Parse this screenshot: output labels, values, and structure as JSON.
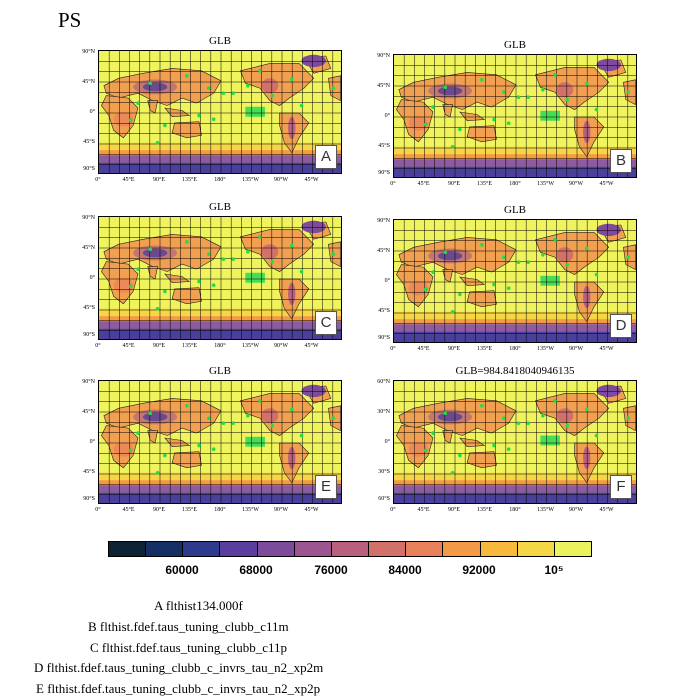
{
  "title": "PS",
  "panels": [
    {
      "title": "GLB",
      "letter": "A",
      "lat_ticks": [
        "90°N",
        "45°N",
        "0°",
        "45°S",
        "90°S"
      ],
      "lon_ticks": [
        "0°",
        "45°E",
        "90°E",
        "135°E",
        "180°",
        "135°W",
        "90°W",
        "45°W"
      ]
    },
    {
      "title": "GLB",
      "letter": "B",
      "lat_ticks": [
        "90°N",
        "45°N",
        "0°",
        "45°S",
        "90°S"
      ],
      "lon_ticks": [
        "0°",
        "45°E",
        "90°E",
        "135°E",
        "180°",
        "135°W",
        "90°W",
        "45°W"
      ]
    },
    {
      "title": "GLB",
      "letter": "C",
      "lat_ticks": [
        "90°N",
        "45°N",
        "0°",
        "45°S",
        "90°S"
      ],
      "lon_ticks": [
        "0°",
        "45°E",
        "90°E",
        "135°E",
        "180°",
        "135°W",
        "90°W",
        "45°W"
      ]
    },
    {
      "title": "GLB",
      "letter": "D",
      "lat_ticks": [
        "90°N",
        "45°N",
        "0°",
        "45°S",
        "90°S"
      ],
      "lon_ticks": [
        "0°",
        "45°E",
        "90°E",
        "135°E",
        "180°",
        "135°W",
        "90°W",
        "45°W"
      ]
    },
    {
      "title": "GLB",
      "letter": "E",
      "lat_ticks": [
        "90°N",
        "45°N",
        "0°",
        "45°S",
        "90°S"
      ],
      "lon_ticks": [
        "0°",
        "45°E",
        "90°E",
        "135°E",
        "180°",
        "135°W",
        "90°W",
        "45°W"
      ]
    },
    {
      "title": "GLB=984.8418040946135",
      "letter": "F",
      "lat_ticks": [
        "60°N",
        "30°N",
        "0°",
        "30°S",
        "60°S"
      ],
      "lon_ticks": [
        "0°",
        "45°E",
        "90°E",
        "135°E",
        "180°",
        "135°W",
        "90°W",
        "45°W"
      ]
    }
  ],
  "colorbar": {
    "colors": [
      "#0d2233",
      "#142f63",
      "#2e3a8c",
      "#5a3e9e",
      "#7e4a9c",
      "#9c5590",
      "#b8617f",
      "#d2706a",
      "#e8805a",
      "#f39a47",
      "#f7b93d",
      "#f5d645",
      "#eaf35c"
    ],
    "labels": [
      "60000",
      "68000",
      "76000",
      "84000",
      "92000",
      "10⁵"
    ]
  },
  "legend": [
    "A  flthist134.000f",
    "B  flthist.fdef.taus_tuning_clubb_c11m",
    "C  flthist.fdef.taus_tuning_clubb_c11p",
    "D  flthist.fdef.taus_tuning_clubb_c_invrs_tau_n2_xp2m",
    "E  flthist.fdef.taus_tuning_clubb_c_invrs_tau_n2_xp2p"
  ],
  "chart_data": {
    "type": "heatmap",
    "title": "PS",
    "variable": "PS",
    "panel_titles": [
      "GLB",
      "GLB",
      "GLB",
      "GLB",
      "GLB",
      "GLB=984.8418040946135"
    ],
    "panel_labels": [
      "A",
      "B",
      "C",
      "D",
      "E",
      "F"
    ],
    "cases": [
      "flthist134.000f",
      "flthist.fdef.taus_tuning_clubb_c11m",
      "flthist.fdef.taus_tuning_clubb_c11p",
      "flthist.fdef.taus_tuning_clubb_c_invrs_tau_n2_xp2m",
      "flthist.fdef.taus_tuning_clubb_c_invrs_tau_n2_xp2p"
    ],
    "colorbar_levels": [
      60000,
      68000,
      76000,
      84000,
      92000,
      100000
    ],
    "colorbar_labels": [
      "60000",
      "68000",
      "76000",
      "84000",
      "92000",
      "10⁵"
    ],
    "lat_range": [
      -90,
      90
    ],
    "lon_range": [
      0,
      360
    ],
    "grid": true
  }
}
